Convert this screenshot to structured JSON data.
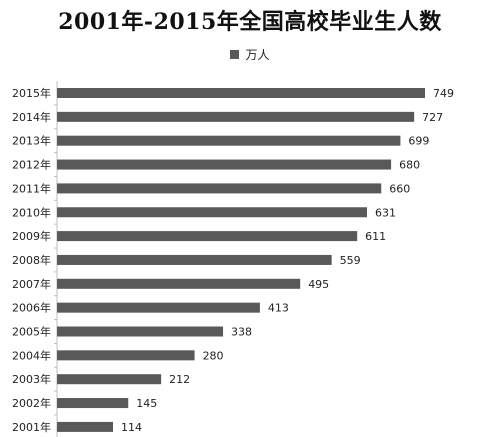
{
  "chart_data": {
    "type": "bar",
    "orientation": "horizontal",
    "title": "2001年-2015年全国高校毕业生人数",
    "legend": {
      "position": "top",
      "entries": [
        "万人"
      ]
    },
    "series": [
      {
        "name": "万人",
        "color": "#595959"
      }
    ],
    "categories": [
      "2015年",
      "2014年",
      "2013年",
      "2012年",
      "2011年",
      "2010年",
      "2009年",
      "2008年",
      "2007年",
      "2006年",
      "2005年",
      "2004年",
      "2003年",
      "2002年",
      "2001年"
    ],
    "values": [
      749,
      727,
      699,
      680,
      660,
      631,
      611,
      559,
      495,
      413,
      338,
      280,
      212,
      145,
      114
    ],
    "xlim": [
      0,
      800
    ],
    "grid": false,
    "data_labels": true
  }
}
